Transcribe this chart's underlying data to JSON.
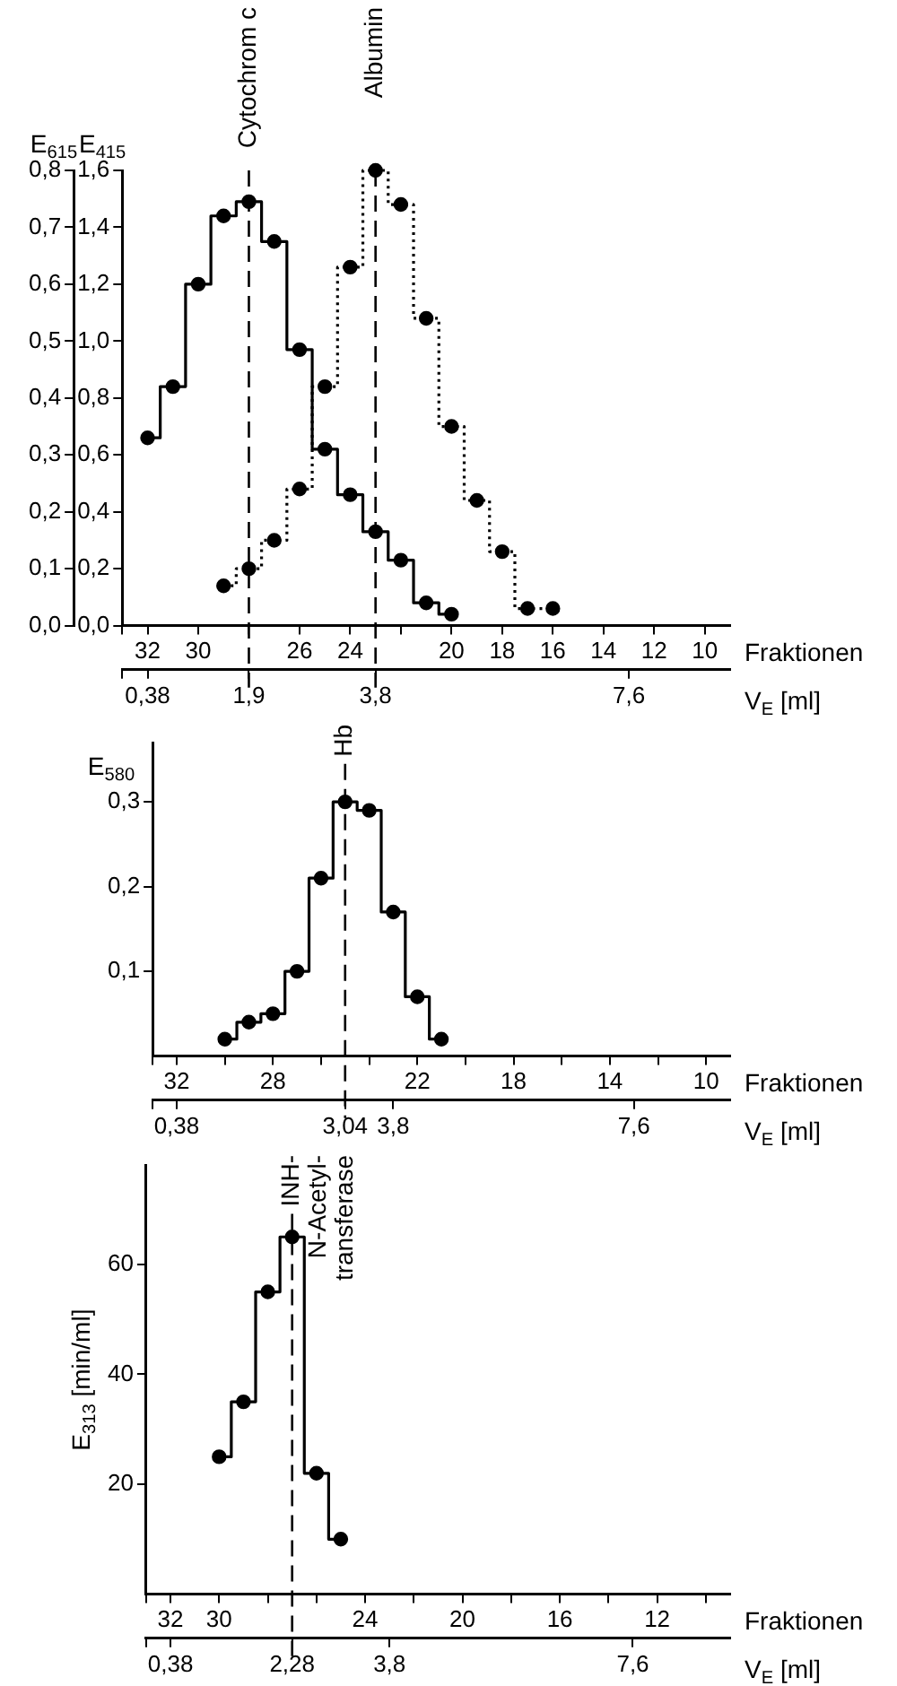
{
  "chart_data": [
    {
      "type": "step",
      "ylabel": "E$_{415}$",
      "y2label": "E$_{615}$",
      "xlabel": "Fraktionen",
      "x2label": "V$_{E}$ [ml]",
      "xlim": [
        33,
        9
      ],
      "xticks": [
        {
          "value": 33,
          "label": null
        },
        32,
        30,
        {
          "value": 28,
          "label": null
        },
        26,
        24,
        {
          "value": 22,
          "label": null
        },
        20,
        18,
        16,
        14,
        12,
        10
      ],
      "x2lim": [
        0,
        9.12
      ],
      "x2ticks": [
        {
          "value": 0,
          "label": null
        },
        {
          "value": 0.38,
          "label": "0,38"
        },
        {
          "value": 1.9,
          "label": "1,9"
        },
        {
          "value": 3.8,
          "label": "3,8"
        },
        {
          "value": 7.6,
          "label": "7,6"
        }
      ],
      "ylim": [
        0,
        1.6
      ],
      "yticks": [
        {
          "value": 0,
          "label": "0,0"
        },
        {
          "value": 0.2,
          "label": "0,2"
        },
        {
          "value": 0.4,
          "label": "0,4"
        },
        {
          "value": 0.6,
          "label": "0,6"
        },
        {
          "value": 0.8,
          "label": "0,8"
        },
        {
          "value": 1,
          "label": "1,0"
        },
        {
          "value": 1.2,
          "label": "1,2"
        },
        {
          "value": 1.4,
          "label": "1,4"
        },
        {
          "value": 1.6,
          "label": "1,6"
        }
      ],
      "y2lim": [
        0,
        0.8
      ],
      "y2ticks": [
        {
          "value": 0,
          "label": "0,0"
        },
        {
          "value": 0.1,
          "label": "0,1"
        },
        {
          "value": 0.2,
          "label": "0,2"
        },
        {
          "value": 0.3,
          "label": "0,3"
        },
        {
          "value": 0.4,
          "label": "0,4"
        },
        {
          "value": 0.5,
          "label": "0,5"
        },
        {
          "value": 0.6,
          "label": "0,6"
        },
        {
          "value": 0.7,
          "label": "0,7"
        },
        {
          "value": 0.8,
          "label": "0,8"
        }
      ],
      "series": [
        {
          "x": [
            32,
            31,
            30,
            29,
            28,
            27,
            26,
            25,
            24,
            23,
            22,
            21,
            20
          ],
          "values": [
            0.66,
            0.84,
            1.2,
            1.44,
            1.49,
            1.35,
            0.97,
            0.62,
            0.46,
            0.33,
            0.23,
            0.08,
            0.04
          ],
          "color": "#000000",
          "line_style": "solid"
        },
        {
          "x": [
            29,
            28,
            27,
            26,
            25,
            24,
            23,
            22,
            21,
            20,
            19,
            18,
            17,
            16
          ],
          "values": [
            0.07,
            0.1,
            0.15,
            0.24,
            0.42,
            0.63,
            0.8,
            0.74,
            0.54,
            0.35,
            0.22,
            0.13,
            0.03,
            0.03
          ],
          "color": "#000000",
          "line_style": "dotted",
          "axis": "y2"
        }
      ],
      "ref_lines": [
        {
          "axis": "x",
          "value": 28,
          "label": "Cytochrom c",
          "line_style": "dashed"
        },
        {
          "axis": "x",
          "value": 23,
          "label": "Albumin",
          "line_style": "dashed"
        }
      ],
      "marker": "circle",
      "grid": false,
      "legend": false
    },
    {
      "type": "step",
      "ylabel": "E$_{580}$",
      "xlabel": "Fraktionen",
      "x2label": "V$_{E}$ [ml]",
      "xlim": [
        33,
        9
      ],
      "xticks": [
        {
          "value": 33,
          "label": null
        },
        32,
        {
          "value": 30,
          "label": null
        },
        28,
        {
          "value": 26,
          "label": null
        },
        {
          "value": 24,
          "label": null
        },
        22,
        {
          "value": 20,
          "label": null
        },
        18,
        {
          "value": 16,
          "label": null
        },
        14,
        {
          "value": 12,
          "label": null
        },
        10
      ],
      "x2lim": [
        0,
        9.12
      ],
      "x2ticks": [
        {
          "value": 0,
          "label": null
        },
        {
          "value": 0.38,
          "label": "0,38"
        },
        {
          "value": 3.04,
          "label": "3,04"
        },
        {
          "value": 3.8,
          "label": "3,8"
        },
        {
          "value": 7.6,
          "label": "7,6"
        }
      ],
      "ylim": [
        0,
        0.37
      ],
      "yticks": [
        {
          "value": 0.1,
          "label": "0,1"
        },
        {
          "value": 0.2,
          "label": "0,2"
        },
        {
          "value": 0.3,
          "label": "0,3"
        }
      ],
      "series": [
        {
          "x": [
            30,
            29,
            28,
            27,
            26,
            25,
            24,
            23,
            22,
            21
          ],
          "values": [
            0.02,
            0.04,
            0.05,
            0.1,
            0.21,
            0.3,
            0.29,
            0.17,
            0.07,
            0.02
          ],
          "color": "#000000",
          "line_style": "solid"
        }
      ],
      "ref_lines": [
        {
          "axis": "x",
          "value": 25,
          "label": "Hb",
          "line_style": "dashed"
        }
      ],
      "marker": "circle",
      "grid": false,
      "legend": false
    },
    {
      "type": "step",
      "ylabel": "E$_{313}$ [min/ml]",
      "xlabel": "Fraktionen",
      "x2label": "V$_{E}$ [ml]",
      "xlim": [
        33,
        9
      ],
      "xticks": [
        {
          "value": 33,
          "label": null
        },
        32,
        30,
        {
          "value": 28,
          "label": null
        },
        {
          "value": 26,
          "label": null
        },
        24,
        {
          "value": 22,
          "label": null
        },
        20,
        {
          "value": 18,
          "label": null
        },
        16,
        {
          "value": 14,
          "label": null
        },
        12,
        {
          "value": 10,
          "label": null
        }
      ],
      "x2lim": [
        0,
        9.12
      ],
      "x2ticks": [
        {
          "value": 0,
          "label": null
        },
        {
          "value": 0.38,
          "label": "0,38"
        },
        {
          "value": 2.28,
          "label": "2,28"
        },
        {
          "value": 3.8,
          "label": "3,8"
        },
        {
          "value": 7.6,
          "label": "7,6"
        }
      ],
      "ylim": [
        0,
        78
      ],
      "yticks": [
        20,
        40,
        60
      ],
      "series": [
        {
          "x": [
            30,
            29,
            28,
            27,
            26,
            25
          ],
          "values": [
            25,
            35,
            55,
            65,
            22,
            10
          ],
          "color": "#000000",
          "line_style": "solid"
        }
      ],
      "ref_lines": [
        {
          "axis": "x",
          "value": 27,
          "label": "INH-\nN-Acetyl-\ntransferase",
          "line_style": "dashed"
        }
      ],
      "marker": "circle",
      "grid": false,
      "legend": false
    }
  ]
}
